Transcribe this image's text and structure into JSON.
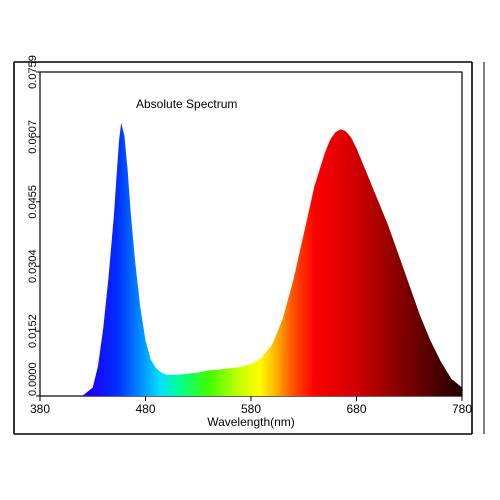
{
  "chart_data": {
    "type": "area",
    "title": "Absolute Spectrum",
    "xlabel": "Wavelength(nm)",
    "ylabel": "",
    "xlim": [
      380,
      780
    ],
    "ylim": [
      0,
      0.0759
    ],
    "x_ticks": [
      "380",
      "480",
      "580",
      "680",
      "780"
    ],
    "y_ticks": [
      "0.0000",
      "0.0152",
      "0.0304",
      "0.0455",
      "0.0607",
      "0.0759"
    ],
    "grid": false,
    "fill": "wavelength-color-gradient",
    "series": [
      {
        "x": [
          380,
          420,
          430,
          435,
          440,
          445,
          450,
          453,
          455,
          457,
          460,
          463,
          466,
          470,
          475,
          480,
          485,
          490,
          495,
          500,
          510,
          520,
          530,
          540,
          550,
          560,
          570,
          580,
          590,
          600,
          610,
          620,
          630,
          640,
          650,
          655,
          660,
          665,
          670,
          675,
          680,
          690,
          700,
          710,
          720,
          730,
          740,
          750,
          760,
          770,
          780
        ],
        "values": [
          0,
          0,
          0.002,
          0.007,
          0.016,
          0.028,
          0.042,
          0.053,
          0.06,
          0.064,
          0.061,
          0.053,
          0.043,
          0.032,
          0.021,
          0.013,
          0.0085,
          0.0065,
          0.0055,
          0.005,
          0.005,
          0.0052,
          0.0055,
          0.006,
          0.0062,
          0.0065,
          0.0068,
          0.0075,
          0.009,
          0.012,
          0.018,
          0.027,
          0.038,
          0.049,
          0.057,
          0.06,
          0.0618,
          0.0625,
          0.062,
          0.0605,
          0.058,
          0.052,
          0.046,
          0.04,
          0.033,
          0.026,
          0.019,
          0.013,
          0.008,
          0.004,
          0.002
        ]
      }
    ]
  }
}
